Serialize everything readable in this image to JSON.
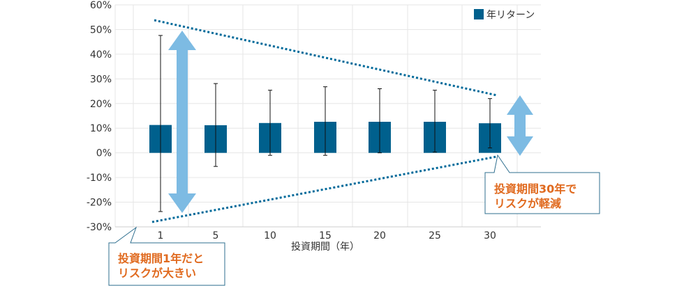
{
  "chart_data": {
    "type": "bar",
    "xlabel": "投資期間（年）",
    "ylabel": "",
    "ylim": [
      -30,
      60
    ],
    "yticks": [
      "-30%",
      "-20%",
      "-10%",
      "0%",
      "10%",
      "20%",
      "30%",
      "40%",
      "50%",
      "60%"
    ],
    "ytick_values": [
      -30,
      -20,
      -10,
      0,
      10,
      20,
      30,
      40,
      50,
      60
    ],
    "categories": [
      "1",
      "5",
      "10",
      "15",
      "20",
      "25",
      "30"
    ],
    "series": [
      {
        "name": "年リターン",
        "values": [
          11.3,
          11.2,
          12.1,
          12.6,
          12.6,
          12.6,
          12.0
        ],
        "error_high": [
          47.6,
          28.1,
          25.4,
          26.8,
          26.0,
          25.4,
          22.0
        ],
        "error_low": [
          -23.8,
          -5.5,
          -1.0,
          -1.0,
          0.0,
          0.3,
          2.0
        ]
      }
    ],
    "legend_position": "top-right",
    "grid": true,
    "colors": {
      "bar": "#00608d",
      "arrow": "#7dbbe3",
      "trend": "#006a9a",
      "grid": "#e6e6e6",
      "axis": "#cccccc"
    }
  },
  "annotations": {
    "long_term": [
      "投資期間30年で",
      "リスクが軽減"
    ],
    "short_term": [
      "投資期間1年だと",
      "リスクが大きい"
    ],
    "text_color": "#e06a1f",
    "box_border": "#2f6f8f"
  }
}
